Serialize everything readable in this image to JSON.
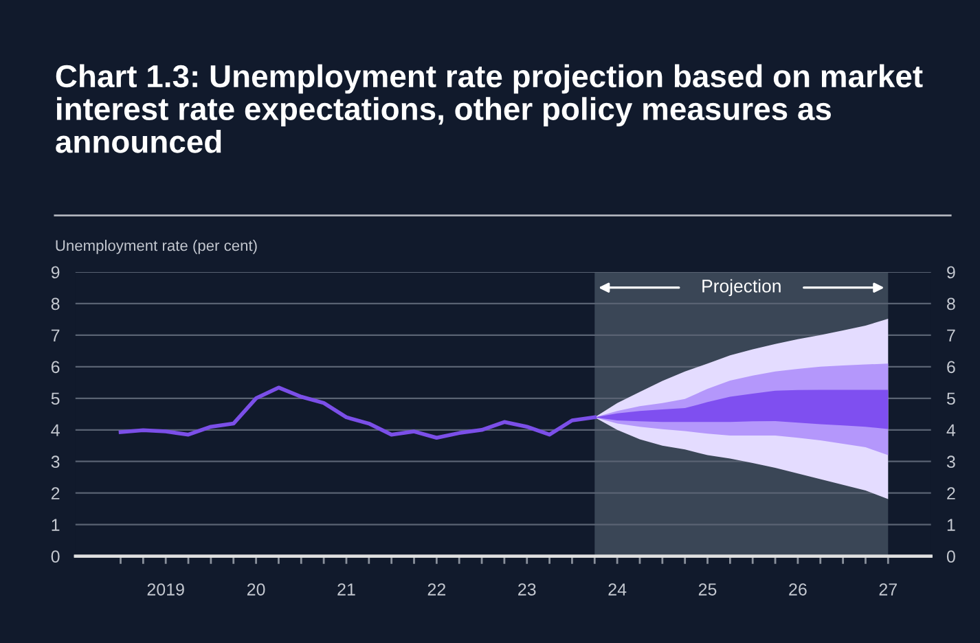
{
  "chart_data": {
    "type": "line",
    "title": "Chart 1.3: Unemployment rate projection based on market interest rate expectations, other policy measures as announced",
    "ylabel": "Unemployment rate (per cent)",
    "categories": [
      null,
      null,
      "2019",
      null,
      null,
      null,
      "20",
      null,
      null,
      null,
      "21",
      null,
      null,
      null,
      "22",
      null,
      null,
      null,
      "23",
      null,
      null,
      null,
      "24",
      null,
      null,
      null,
      "25",
      null,
      null,
      null,
      "26",
      null,
      null,
      null,
      "27"
    ],
    "series": [
      {
        "type": "area",
        "color": "#e4dcff",
        "values": [
          null,
          null,
          null,
          null,
          null,
          null,
          null,
          null,
          null,
          null,
          null,
          null,
          null,
          null,
          null,
          null,
          null,
          null,
          null,
          null,
          null,
          null,
          null,
          null,
          null,
          null,
          null,
          null,
          null,
          null,
          null,
          null,
          null,
          null,
          null
        ],
        "lower": [
          null,
          null,
          null,
          null,
          null,
          null,
          null,
          null,
          null,
          null,
          null,
          null,
          null,
          null,
          null,
          null,
          null,
          null,
          null,
          null,
          null,
          4.4,
          4.0,
          3.7,
          3.5,
          3.38,
          3.2,
          3.09,
          2.95,
          2.8,
          2.62,
          2.44,
          2.26,
          2.08,
          1.81
        ],
        "upper": [
          null,
          null,
          null,
          null,
          null,
          null,
          null,
          null,
          null,
          null,
          null,
          null,
          null,
          null,
          null,
          null,
          null,
          null,
          null,
          null,
          null,
          4.4,
          4.85,
          5.2,
          5.55,
          5.85,
          6.1,
          6.36,
          6.55,
          6.72,
          6.87,
          7.0,
          7.15,
          7.3,
          7.52
        ]
      },
      {
        "type": "area",
        "color": "#b497fb",
        "values": [
          null,
          null,
          null,
          null,
          null,
          null,
          null,
          null,
          null,
          null,
          null,
          null,
          null,
          null,
          null,
          null,
          null,
          null,
          null,
          null,
          null,
          null,
          null,
          null,
          null,
          null,
          null,
          null,
          null,
          null,
          null,
          null,
          null,
          null,
          null
        ],
        "lower": [
          null,
          null,
          null,
          null,
          null,
          null,
          null,
          null,
          null,
          null,
          null,
          null,
          null,
          null,
          null,
          null,
          null,
          null,
          null,
          null,
          null,
          4.4,
          4.2,
          4.1,
          4.02,
          3.96,
          3.88,
          3.82,
          3.82,
          3.82,
          3.75,
          3.67,
          3.56,
          3.45,
          3.2
        ],
        "upper": [
          null,
          null,
          null,
          null,
          null,
          null,
          null,
          null,
          null,
          null,
          null,
          null,
          null,
          null,
          null,
          null,
          null,
          null,
          null,
          null,
          null,
          4.4,
          4.6,
          4.75,
          4.85,
          4.98,
          5.3,
          5.56,
          5.72,
          5.85,
          5.93,
          6.0,
          6.04,
          6.07,
          6.1
        ]
      },
      {
        "type": "area",
        "color": "#7f4ff0",
        "values": [
          null,
          null,
          null,
          null,
          null,
          null,
          null,
          null,
          null,
          null,
          null,
          null,
          null,
          null,
          null,
          null,
          null,
          null,
          null,
          null,
          null,
          null,
          null,
          null,
          null,
          null,
          null,
          null,
          null,
          null,
          null,
          null,
          null,
          null,
          null
        ],
        "lower": [
          null,
          null,
          null,
          null,
          null,
          null,
          null,
          null,
          null,
          null,
          null,
          null,
          null,
          null,
          null,
          null,
          null,
          null,
          null,
          null,
          null,
          4.4,
          4.3,
          4.27,
          4.25,
          4.25,
          4.25,
          4.25,
          4.27,
          4.28,
          4.23,
          4.18,
          4.14,
          4.1,
          4.03
        ],
        "upper": [
          null,
          null,
          null,
          null,
          null,
          null,
          null,
          null,
          null,
          null,
          null,
          null,
          null,
          null,
          null,
          null,
          null,
          null,
          null,
          null,
          null,
          4.4,
          4.52,
          4.6,
          4.65,
          4.69,
          4.88,
          5.05,
          5.15,
          5.24,
          5.26,
          5.27,
          5.27,
          5.27,
          5.27
        ]
      },
      {
        "color": "#7b4fe8",
        "values": [
          3.93,
          3.99,
          3.95,
          3.85,
          4.1,
          4.2,
          5.0,
          5.34,
          5.05,
          4.85,
          4.4,
          4.2,
          3.85,
          3.95,
          3.75,
          3.9,
          4.0,
          4.25,
          4.1,
          3.85,
          4.3,
          4.4,
          null,
          null,
          null,
          null,
          null,
          null,
          null,
          null,
          null,
          null,
          null,
          null,
          null
        ]
      }
    ],
    "ylim": [
      0,
      9
    ],
    "yticks": [
      0,
      1,
      2,
      3,
      4,
      5,
      6,
      7,
      8,
      9
    ],
    "y2lim": [
      0,
      9
    ],
    "y2ticks": [
      0,
      1,
      2,
      3,
      4,
      5,
      6,
      7,
      8,
      9
    ],
    "annotations": [
      "Projection"
    ],
    "grid": "y",
    "marker": "none",
    "line_style": "solid"
  }
}
